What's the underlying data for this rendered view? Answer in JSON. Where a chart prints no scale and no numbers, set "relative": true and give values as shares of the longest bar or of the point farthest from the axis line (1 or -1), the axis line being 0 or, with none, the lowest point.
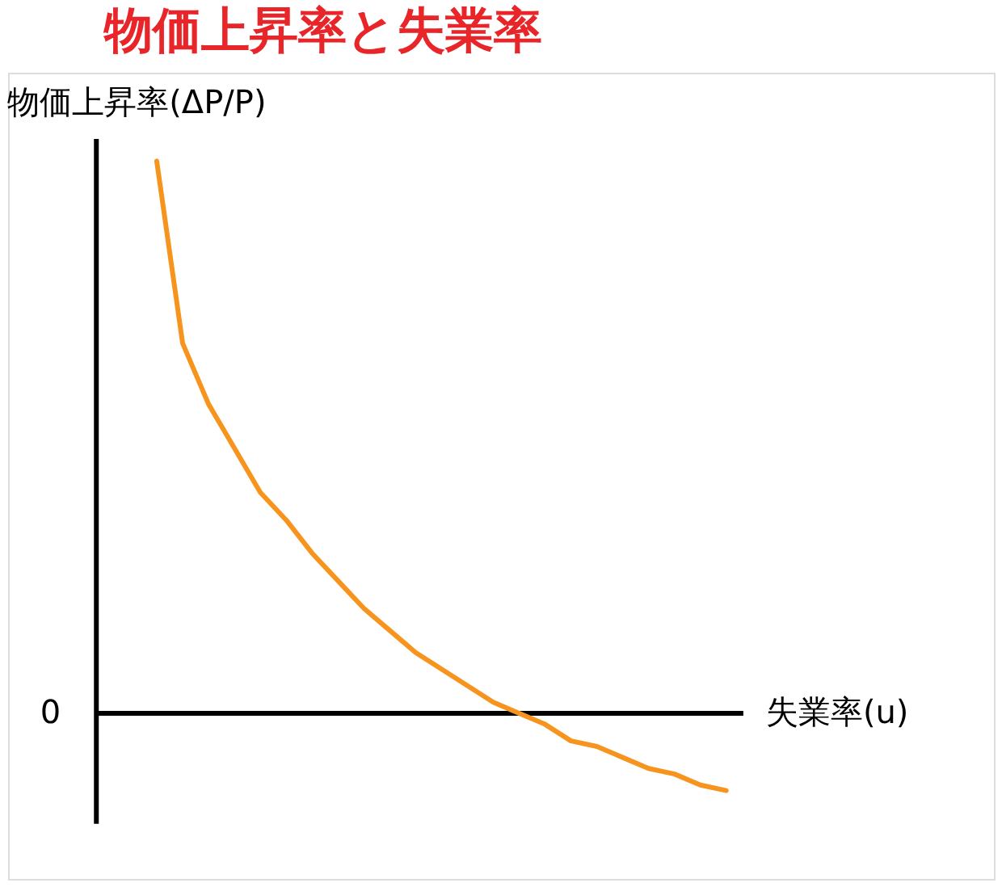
{
  "chart_data": {
    "type": "line",
    "title": "物価上昇率と失業率",
    "xlabel": "失業率(u)",
    "ylabel": "物価上昇率(ΔP/P)",
    "relative": true,
    "marker": "none",
    "line_style": "solid",
    "categories": [
      null,
      null,
      null,
      null,
      null,
      null,
      null,
      null,
      null,
      null,
      null,
      null,
      null,
      null,
      null,
      null,
      null,
      null,
      null,
      null,
      null,
      null,
      null
    ],
    "annotations": [
      "0"
    ],
    "series": [
      {
        "color": "#f7941d",
        "values": [
          1,
          0.67,
          0.56,
          0.48,
          0.4,
          0.35,
          0.29,
          0.24,
          0.19,
          0.15,
          0.11,
          0.08,
          0.05,
          0.02,
          0.0,
          -0.02,
          -0.05,
          -0.06,
          -0.08,
          -0.1,
          -0.11,
          -0.13,
          -0.14
        ]
      }
    ]
  }
}
